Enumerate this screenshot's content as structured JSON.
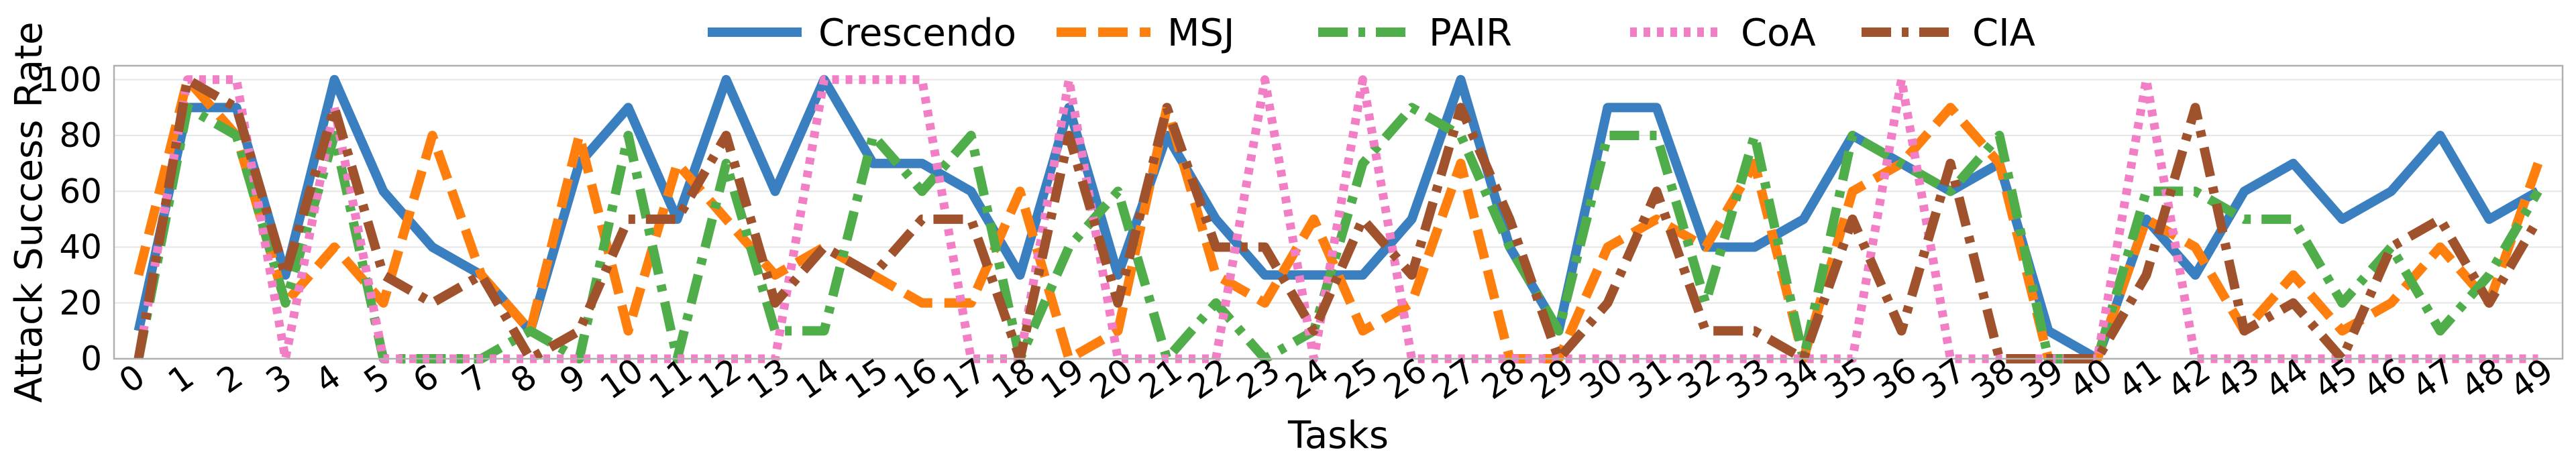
{
  "chart_data": {
    "type": "line",
    "xlabel": "Tasks",
    "ylabel": "Attack Success Rate",
    "ylim": [
      0,
      105
    ],
    "xlim": [
      -0.5,
      49.5
    ],
    "yticks": [
      0,
      20,
      40,
      60,
      80,
      100
    ],
    "grid": true,
    "legend_position": "top-center",
    "x": [
      0,
      1,
      2,
      3,
      4,
      5,
      6,
      7,
      8,
      9,
      10,
      11,
      12,
      13,
      14,
      15,
      16,
      17,
      18,
      19,
      20,
      21,
      22,
      23,
      24,
      25,
      26,
      27,
      28,
      29,
      30,
      31,
      32,
      33,
      34,
      35,
      36,
      37,
      38,
      39,
      40,
      41,
      42,
      43,
      44,
      45,
      46,
      47,
      48,
      49
    ],
    "series": [
      {
        "name": "Crescendo",
        "color": "#3a7fc0",
        "dash": "solid",
        "values": [
          10,
          90,
          90,
          30,
          100,
          60,
          40,
          30,
          10,
          70,
          90,
          50,
          100,
          60,
          100,
          70,
          70,
          60,
          30,
          90,
          30,
          80,
          50,
          30,
          30,
          30,
          50,
          100,
          40,
          10,
          90,
          90,
          40,
          40,
          50,
          80,
          70,
          60,
          70,
          10,
          0,
          50,
          30,
          60,
          70,
          50,
          60,
          80,
          50,
          60
        ]
      },
      {
        "name": "MSJ",
        "color": "#ff7f0e",
        "dash": "dash",
        "values": [
          30,
          100,
          80,
          20,
          40,
          20,
          80,
          30,
          10,
          80,
          10,
          70,
          50,
          30,
          40,
          30,
          20,
          20,
          60,
          0,
          10,
          90,
          30,
          20,
          50,
          10,
          20,
          70,
          0,
          0,
          40,
          50,
          40,
          70,
          0,
          60,
          70,
          90,
          70,
          0,
          0,
          50,
          40,
          10,
          30,
          10,
          20,
          40,
          20,
          70
        ]
      },
      {
        "name": "PAIR",
        "color": "#4fad4a",
        "dash": "dashdot",
        "values": [
          0,
          90,
          80,
          20,
          80,
          0,
          0,
          0,
          10,
          0,
          80,
          0,
          70,
          10,
          10,
          80,
          60,
          80,
          0,
          40,
          60,
          0,
          20,
          0,
          10,
          70,
          90,
          80,
          40,
          10,
          80,
          80,
          20,
          80,
          0,
          80,
          70,
          60,
          80,
          0,
          0,
          60,
          60,
          50,
          50,
          20,
          40,
          10,
          30,
          60
        ]
      },
      {
        "name": "CoA",
        "color": "#f27fc6",
        "dash": "dot",
        "values": [
          0,
          100,
          100,
          0,
          90,
          0,
          0,
          0,
          0,
          0,
          0,
          0,
          0,
          0,
          100,
          100,
          100,
          0,
          0,
          100,
          0,
          0,
          0,
          100,
          0,
          100,
          0,
          0,
          0,
          0,
          0,
          0,
          0,
          0,
          0,
          0,
          100,
          0,
          0,
          0,
          0,
          100,
          0,
          0,
          0,
          0,
          0,
          0,
          0,
          0
        ]
      },
      {
        "name": "CIA",
        "color": "#a0522d",
        "dash": "dashdot",
        "values": [
          0,
          100,
          90,
          30,
          90,
          30,
          20,
          30,
          0,
          10,
          50,
          50,
          80,
          20,
          40,
          30,
          50,
          50,
          0,
          80,
          20,
          90,
          40,
          40,
          10,
          50,
          30,
          90,
          50,
          0,
          20,
          60,
          10,
          10,
          0,
          50,
          10,
          70,
          0,
          0,
          0,
          30,
          90,
          10,
          20,
          0,
          40,
          50,
          20,
          50
        ]
      }
    ]
  }
}
